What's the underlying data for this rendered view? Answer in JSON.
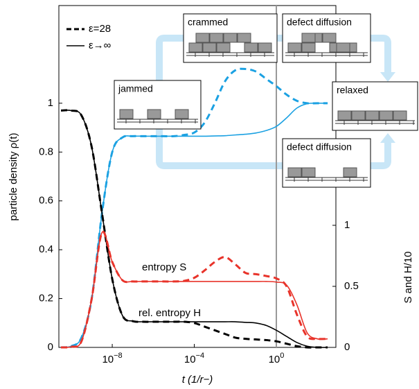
{
  "chart_data": {
    "type": "line",
    "ylabel": "particle density ρ(t)",
    "y2label": "S and H/10",
    "xlabel": "t  (1/r−)",
    "log_x": true,
    "xlim": [
      2.5e-11,
      800
    ],
    "xticks": [
      {
        "value": 1e-08,
        "label": "10−8"
      },
      {
        "value": 0.0001,
        "label": "10−4"
      },
      {
        "value": 1,
        "label": "100"
      }
    ],
    "ylim": [
      0,
      1.4
    ],
    "yticks": [
      0,
      0.2,
      0.4,
      0.6,
      0.8,
      1
    ],
    "y2lim": [
      0,
      2.8
    ],
    "y2ticks": [
      0,
      0.5,
      1
    ],
    "vline": 1,
    "vline_color": "#999999",
    "x": [
      3.162e-11,
      1e-10,
      3.162e-10,
      1e-09,
      3.162e-09,
      1e-08,
      3.162e-08,
      1e-07,
      3.162e-07,
      1e-06,
      3.162e-06,
      1e-05,
      3.162e-05,
      0.0001,
      0.0003162,
      0.001,
      0.003162,
      0.01,
      0.03162,
      0.1,
      0.3162,
      1,
      3.162,
      10,
      31.62,
      100,
      316.2
    ],
    "series": [
      {
        "color": "#1ba1e2",
        "dashed": false,
        "axis": "y",
        "values": [
          0,
          0.005,
          0.04,
          0.2,
          0.55,
          0.8,
          0.86,
          0.865,
          0.865,
          0.865,
          0.865,
          0.865,
          0.865,
          0.865,
          0.865,
          0.866,
          0.867,
          0.87,
          0.873,
          0.878,
          0.888,
          0.905,
          0.94,
          0.98,
          0.998,
          1,
          1
        ]
      },
      {
        "color": "#1ba1e2",
        "dashed": true,
        "axis": "y",
        "values": [
          0,
          0.005,
          0.04,
          0.2,
          0.55,
          0.8,
          0.86,
          0.865,
          0.865,
          0.865,
          0.865,
          0.865,
          0.87,
          0.88,
          0.92,
          1,
          1.09,
          1.135,
          1.14,
          1.13,
          1.1,
          1.07,
          1.035,
          1.01,
          1,
          1,
          1
        ]
      },
      {
        "color": "#000000",
        "dashed": false,
        "axis": "y2",
        "values": [
          1.94,
          1.94,
          1.9,
          1.64,
          1.1,
          0.56,
          0.26,
          0.215,
          0.21,
          0.21,
          0.21,
          0.21,
          0.21,
          0.21,
          0.21,
          0.21,
          0.21,
          0.21,
          0.205,
          0.2,
          0.18,
          0.14,
          0.09,
          0.04,
          0.01,
          0,
          0
        ]
      },
      {
        "color": "#000000",
        "dashed": true,
        "axis": "y2",
        "values": [
          1.94,
          1.94,
          1.9,
          1.64,
          1.1,
          0.56,
          0.26,
          0.215,
          0.21,
          0.21,
          0.21,
          0.21,
          0.21,
          0.2,
          0.17,
          0.14,
          0.11,
          0.08,
          0.07,
          0.065,
          0.06,
          0.05,
          0.03,
          0.01,
          0,
          0,
          0
        ]
      },
      {
        "color": "#e8332a",
        "dashed": false,
        "axis": "y2",
        "values": [
          0,
          0.005,
          0.05,
          0.4,
          0.94,
          0.7,
          0.55,
          0.54,
          0.54,
          0.54,
          0.54,
          0.54,
          0.54,
          0.54,
          0.54,
          0.54,
          0.54,
          0.54,
          0.54,
          0.54,
          0.54,
          0.535,
          0.51,
          0.35,
          0.12,
          0.07,
          0.07
        ]
      },
      {
        "color": "#e8332a",
        "dashed": true,
        "axis": "y2",
        "values": [
          0,
          0.005,
          0.05,
          0.4,
          0.94,
          0.7,
          0.55,
          0.54,
          0.54,
          0.54,
          0.54,
          0.54,
          0.545,
          0.57,
          0.63,
          0.7,
          0.74,
          0.68,
          0.61,
          0.6,
          0.585,
          0.565,
          0.5,
          0.27,
          0.09,
          0.07,
          0.07
        ]
      }
    ],
    "legend": [
      {
        "label": "ε=28",
        "dashed": true
      },
      {
        "label": "ε→∞",
        "dashed": false
      }
    ],
    "annotations": [
      "entropy S",
      "rel. entropy H"
    ],
    "insets": [
      "crammed",
      "defect diffusion",
      "jammed",
      "relaxed",
      "defect diffusion"
    ]
  }
}
